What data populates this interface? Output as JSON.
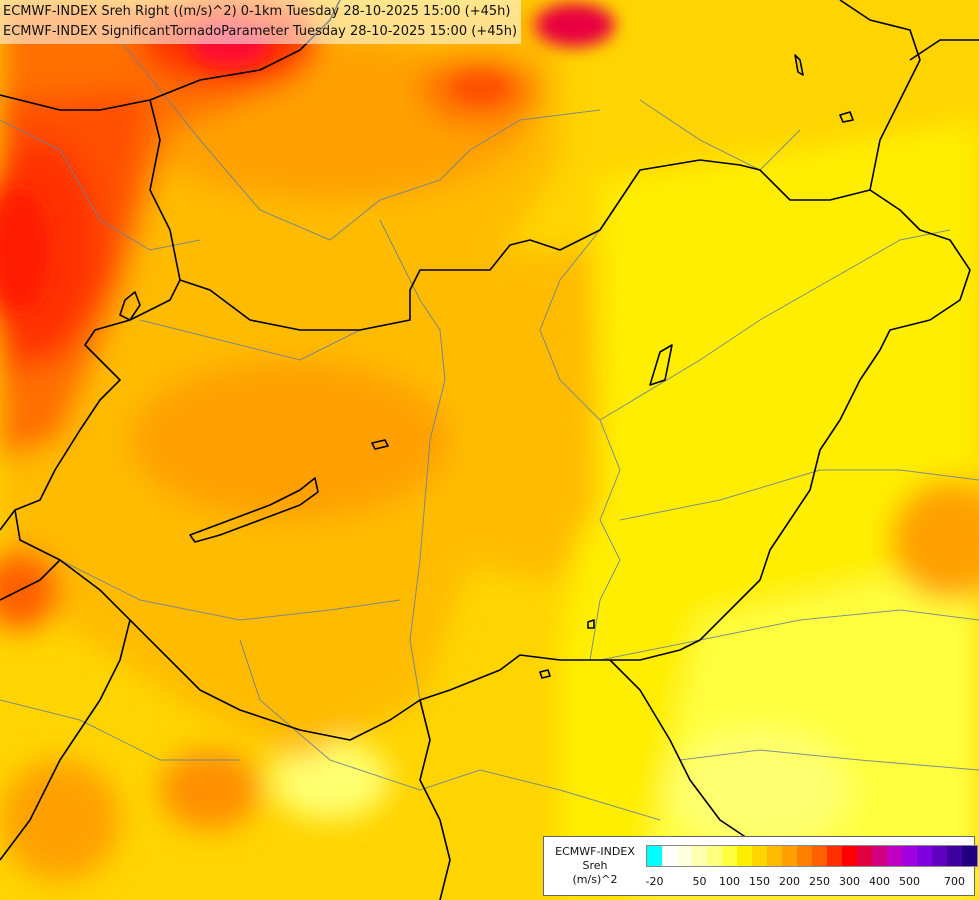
{
  "titles": {
    "line1": "ECMWF-INDEX Sreh Right ((m/s)^2) 0-1km Tuesday 28-10-2025 15:00 (+45h)",
    "line2": "ECMWF-INDEX SignificantTornadoParameter Tuesday 28-10-2025 15:00 (+45h)"
  },
  "legend": {
    "source": "ECMWF-INDEX",
    "variable": "Sreh",
    "unit": "(m/s)^2",
    "labels": [
      "-20",
      "50",
      "100",
      "150",
      "200",
      "250",
      "300",
      "400",
      "500",
      "700"
    ],
    "colors": [
      "#00ffff",
      "#ffffff",
      "#ffffe0",
      "#ffffb0",
      "#ffff80",
      "#ffff40",
      "#ffee00",
      "#ffd400",
      "#ffbb00",
      "#ffa000",
      "#ff8000",
      "#ff6000",
      "#ff3000",
      "#ff0000",
      "#e00040",
      "#d00080",
      "#c000c0",
      "#a000e0",
      "#8000e0",
      "#6000c0",
      "#4000a0",
      "#200080"
    ],
    "label_positions": [
      0,
      3,
      5,
      7,
      9,
      11,
      13,
      15,
      17,
      20
    ]
  },
  "palette": {
    "base": "#ffd400",
    "light_yellow": "#ffee00",
    "pale": "#ffff50",
    "orange_light": "#ffbb00",
    "orange": "#ffa000",
    "orange_dark": "#ff8000",
    "red_orange": "#ff5000",
    "red": "#ff2000",
    "magenta": "#e00040",
    "border": "#000000",
    "river": "#6a7f9a"
  }
}
